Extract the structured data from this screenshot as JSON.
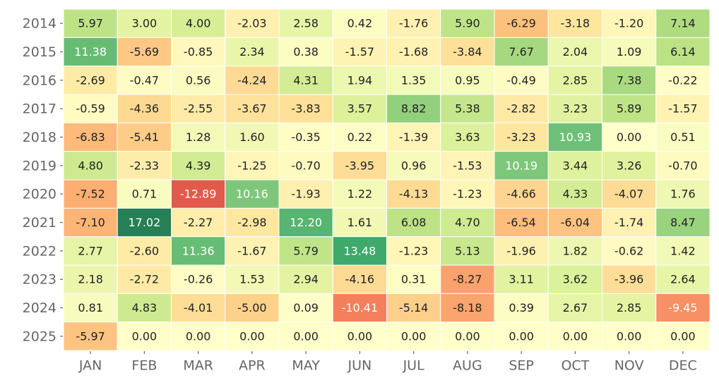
{
  "chart_data": {
    "type": "heatmap",
    "colormap": "RdYlGn",
    "x_categories": [
      "JAN",
      "FEB",
      "MAR",
      "APR",
      "MAY",
      "JUN",
      "JUL",
      "AUG",
      "SEP",
      "OCT",
      "NOV",
      "DEC"
    ],
    "y_categories": [
      "2014",
      "2015",
      "2016",
      "2017",
      "2018",
      "2019",
      "2020",
      "2021",
      "2022",
      "2023",
      "2024",
      "2025"
    ],
    "values": [
      [
        5.97,
        3.0,
        4.0,
        -2.03,
        2.58,
        0.42,
        -1.76,
        5.9,
        -6.29,
        -3.18,
        -1.2,
        7.14
      ],
      [
        11.38,
        -5.69,
        -0.85,
        2.34,
        0.38,
        -1.57,
        -1.68,
        -3.84,
        7.67,
        2.04,
        1.09,
        6.14
      ],
      [
        -2.69,
        -0.47,
        0.56,
        -4.24,
        4.31,
        1.94,
        1.35,
        0.95,
        -0.49,
        2.85,
        7.38,
        -0.22
      ],
      [
        -0.59,
        -4.36,
        -2.55,
        -3.67,
        -3.83,
        3.57,
        8.82,
        5.38,
        -2.82,
        3.23,
        5.89,
        -1.57
      ],
      [
        -6.83,
        -5.41,
        1.28,
        1.6,
        -0.35,
        0.22,
        -1.39,
        3.63,
        -3.23,
        10.93,
        0,
        0.51
      ],
      [
        4.8,
        -2.33,
        4.39,
        -1.25,
        -0.7,
        -3.95,
        0.96,
        -1.53,
        10.19,
        3.44,
        3.26,
        -0.7
      ],
      [
        -7.52,
        0.71,
        -12.89,
        10.16,
        -1.93,
        1.22,
        -4.13,
        -1.23,
        -4.66,
        4.33,
        -4.07,
        1.76
      ],
      [
        -7.1,
        17.02,
        -2.27,
        -2.98,
        12.2,
        1.61,
        6.08,
        4.7,
        -6.54,
        -6.04,
        -1.74,
        8.47
      ],
      [
        2.77,
        -2.6,
        11.36,
        -1.67,
        5.79,
        13.48,
        -1.23,
        5.13,
        -1.96,
        1.82,
        -0.62,
        1.42
      ],
      [
        2.18,
        -2.72,
        -0.26,
        1.53,
        2.94,
        -4.16,
        0.31,
        -8.27,
        3.11,
        3.62,
        -3.96,
        2.64
      ],
      [
        0.81,
        4.83,
        -4.01,
        -5.0,
        0.09,
        -10.41,
        -5.14,
        -8.18,
        0.39,
        2.67,
        2.85,
        -9.45
      ],
      [
        -5.97,
        0,
        0,
        0,
        0,
        0,
        0,
        0,
        0,
        0,
        0,
        0
      ]
    ],
    "value_labels": [
      [
        "5.97",
        "3.00",
        "4.00",
        "-2.03",
        "2.58",
        "0.42",
        "-1.76",
        "5.90",
        "-6.29",
        "-3.18",
        "-1.20",
        "7.14"
      ],
      [
        "11.38",
        "-5.69",
        "-0.85",
        "2.34",
        "0.38",
        "-1.57",
        "-1.68",
        "-3.84",
        "7.67",
        "2.04",
        "1.09",
        "6.14"
      ],
      [
        "-2.69",
        "-0.47",
        "0.56",
        "-4.24",
        "4.31",
        "1.94",
        "1.35",
        "0.95",
        "-0.49",
        "2.85",
        "7.38",
        "-0.22"
      ],
      [
        "-0.59",
        "-4.36",
        "-2.55",
        "-3.67",
        "-3.83",
        "3.57",
        "8.82",
        "5.38",
        "-2.82",
        "3.23",
        "5.89",
        "-1.57"
      ],
      [
        "-6.83",
        "-5.41",
        "1.28",
        "1.60",
        "-0.35",
        "0.22",
        "-1.39",
        "3.63",
        "-3.23",
        "10.93",
        "0.00",
        "0.51"
      ],
      [
        "4.80",
        "-2.33",
        "4.39",
        "-1.25",
        "-0.70",
        "-3.95",
        "0.96",
        "-1.53",
        "10.19",
        "3.44",
        "3.26",
        "-0.70"
      ],
      [
        "-7.52",
        "0.71",
        "-12.89",
        "10.16",
        "-1.93",
        "1.22",
        "-4.13",
        "-1.23",
        "-4.66",
        "4.33",
        "-4.07",
        "1.76"
      ],
      [
        "-7.10",
        "17.02",
        "-2.27",
        "-2.98",
        "12.20",
        "1.61",
        "6.08",
        "4.70",
        "-6.54",
        "-6.04",
        "-1.74",
        "8.47"
      ],
      [
        "2.77",
        "-2.60",
        "11.36",
        "-1.67",
        "5.79",
        "13.48",
        "-1.23",
        "5.13",
        "-1.96",
        "1.82",
        "-0.62",
        "1.42"
      ],
      [
        "2.18",
        "-2.72",
        "-0.26",
        "1.53",
        "2.94",
        "-4.16",
        "0.31",
        "-8.27",
        "3.11",
        "3.62",
        "-3.96",
        "2.64"
      ],
      [
        "0.81",
        "4.83",
        "-4.01",
        "-5.00",
        "0.09",
        "-10.41",
        "-5.14",
        "-8.18",
        "0.39",
        "2.67",
        "2.85",
        "-9.45"
      ],
      [
        "-5.97",
        "0.00",
        "0.00",
        "0.00",
        "0.00",
        "0.00",
        "0.00",
        "0.00",
        "0.00",
        "0.00",
        "0.00",
        "0.00"
      ]
    ]
  }
}
